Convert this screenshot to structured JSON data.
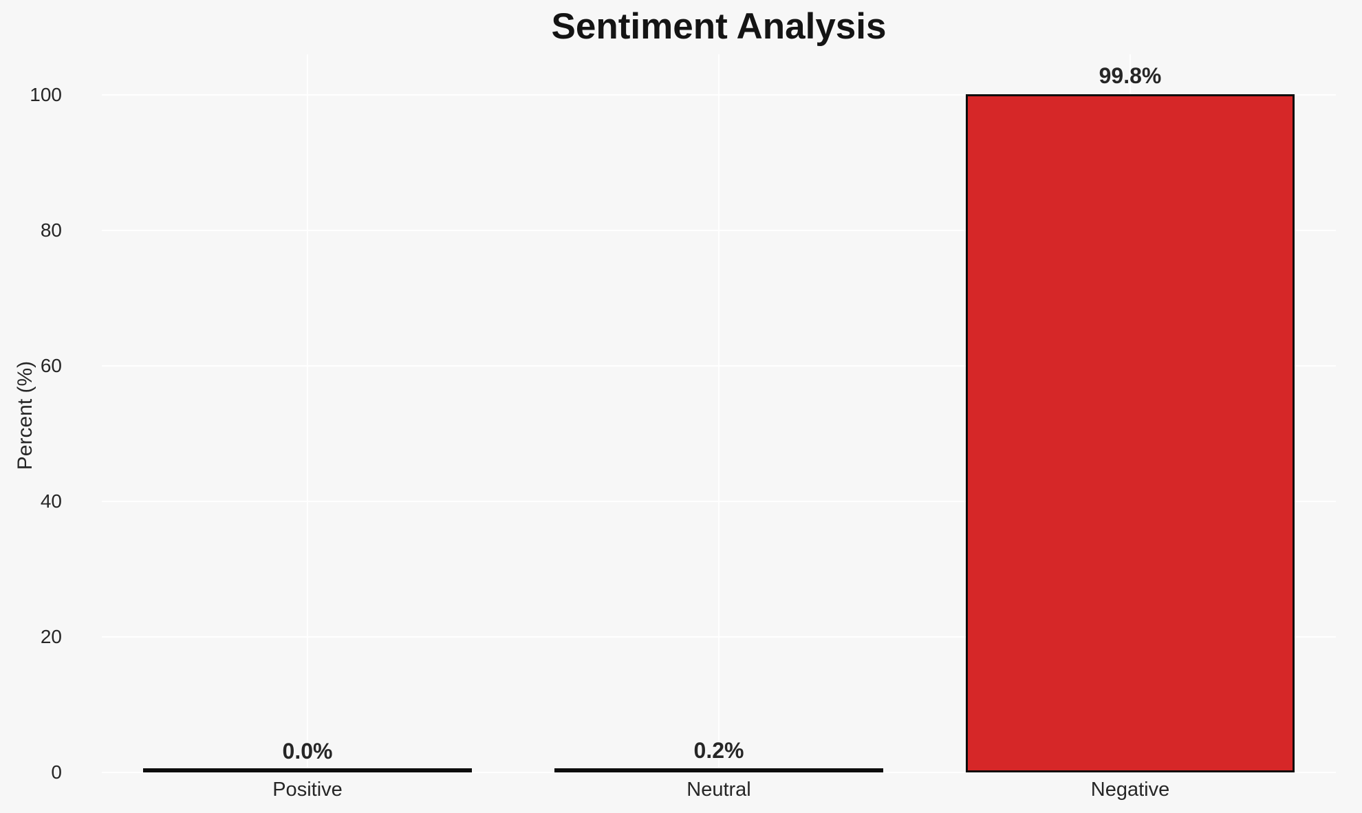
{
  "chart_data": {
    "type": "bar",
    "title": "Sentiment Analysis",
    "xlabel": "",
    "ylabel": "Percent (%)",
    "categories": [
      "Positive",
      "Neutral",
      "Negative"
    ],
    "values": [
      0.0,
      0.2,
      99.8
    ],
    "value_labels": [
      "0.0%",
      "0.2%",
      "99.8%"
    ],
    "yticks": [
      0,
      20,
      40,
      60,
      80,
      100
    ],
    "ytick_labels": [
      "0",
      "20",
      "40",
      "60",
      "80",
      "100"
    ],
    "ylim": [
      0,
      106
    ],
    "grid": true,
    "legend": false,
    "colors": {
      "bar_fill": "#d62728",
      "bar_edge": "#0d0d0d",
      "background": "#f7f7f7",
      "gridline": "#ffffff",
      "text": "#262626",
      "title_text": "#141414"
    }
  }
}
